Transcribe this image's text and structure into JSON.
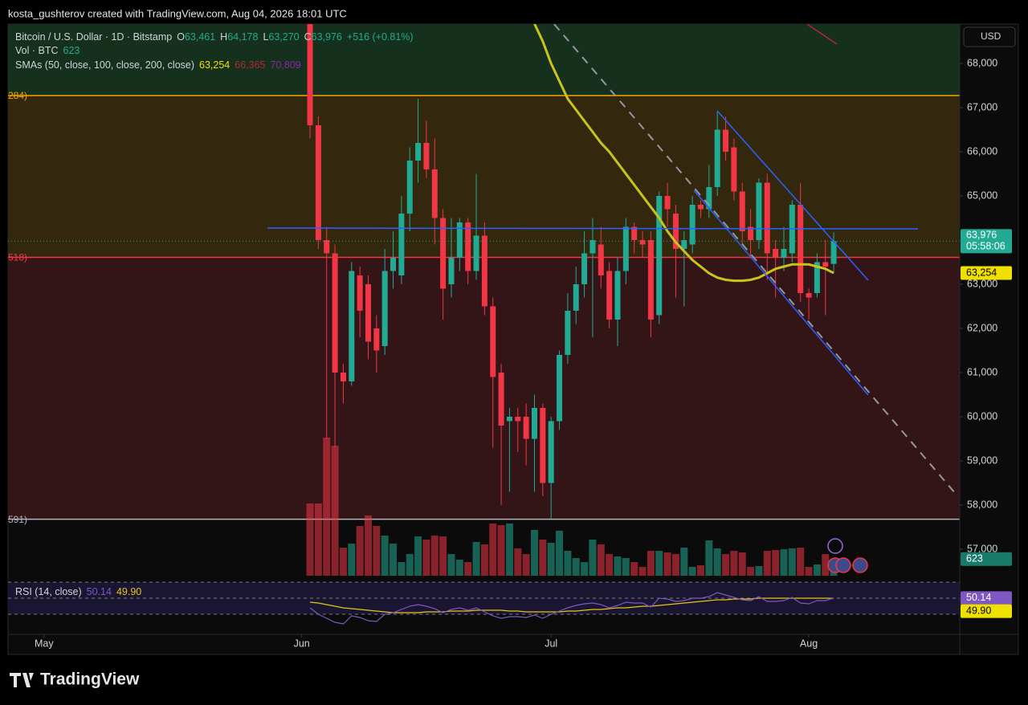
{
  "header": "kosta_gushterov created with TradingView.com, Aug 04, 2026 18:01 UTC",
  "footer": "TradingView",
  "ui": {
    "currency": "USD",
    "symbol": "Bitcoin / U.S. Dollar · 1D · Bitstamp",
    "o_label": "O",
    "open": "63,461",
    "h_label": "H",
    "high": "64,178",
    "l_label": "L",
    "low": "63,270",
    "c_label": "C",
    "close": "63,976",
    "change": "+516 (+0.81%)",
    "volume_label": "Vol · BTC",
    "volume_value": "623",
    "sma_label": "SMAs (50, close, 100, close, 200, close)",
    "sma50_value": "63,254",
    "sma100_value": "66,365",
    "sma200_value": "70,809",
    "rsi_label": "RSI (14, close)",
    "rsi_value": "50.14",
    "rsi_ma_value": "49.90",
    "price_tag": "63,976",
    "countdown": "05:58:06",
    "sma_tag": "63,254",
    "volume_tag": "623",
    "rsi_tag": "50.14",
    "rsi_ma_tag": "49.90"
  },
  "chart_data": {
    "type": "candlestick",
    "title": "Bitcoin / U.S. Dollar · 1D · Bitstamp",
    "categories": [
      null,
      null,
      null,
      null,
      null,
      null,
      null,
      null,
      null,
      null,
      null,
      null,
      null,
      null,
      null,
      null,
      null,
      null,
      null,
      null,
      null,
      null,
      null,
      null,
      null,
      null,
      null,
      null,
      null,
      null,
      null,
      null,
      null,
      null,
      null,
      null,
      null,
      null,
      null,
      null,
      null,
      null,
      null,
      null,
      null,
      null,
      null,
      null,
      null,
      null,
      null,
      null,
      null,
      null,
      null,
      null,
      null,
      null,
      null,
      null,
      null,
      null,
      null,
      null
    ],
    "xlim": [
      -36.33,
      78.16
    ],
    "xticks": [
      {
        "value": -32,
        "label": "May"
      },
      {
        "value": -1,
        "label": "Jun"
      },
      {
        "value": 29,
        "label": "Jul"
      },
      {
        "value": 60,
        "label": "Aug"
      }
    ],
    "ylim": [
      56400,
      68891
    ],
    "yticks": [
      {
        "value": 57000,
        "label": "57,000"
      },
      {
        "value": 58000,
        "label": "58,000"
      },
      {
        "value": 59000,
        "label": "59,000"
      },
      {
        "value": 60000,
        "label": "60,000"
      },
      {
        "value": 61000,
        "label": "61,000"
      },
      {
        "value": 62000,
        "label": "62,000"
      },
      {
        "value": 63000,
        "label": "63,000"
      },
      {
        "value": 64000,
        "label": "64,000"
      },
      {
        "value": 65000,
        "label": "65,000"
      },
      {
        "value": 66000,
        "label": "66,000"
      },
      {
        "value": 67000,
        "label": "67,000"
      },
      {
        "value": 68000,
        "label": "68,000"
      }
    ],
    "up_color": "#22ab94",
    "down_color": "#f23645",
    "open": [
      69000,
      66600,
      64000,
      63700,
      61000,
      60800,
      63200,
      63000,
      62000,
      61600,
      63300,
      63200,
      64600,
      65800,
      66200,
      65600,
      64500,
      63000,
      63600,
      64400,
      63300,
      64100,
      62500,
      61000,
      59900,
      60000,
      60000,
      59500,
      60200,
      58500,
      59900,
      61400,
      62400,
      63000,
      63700,
      63900,
      63300,
      62200,
      63300,
      64300,
      64000,
      64000,
      62300,
      65000,
      64600,
      63800,
      63900,
      64800,
      64700,
      65200,
      66500,
      66100,
      65100,
      64300,
      64000,
      65300,
      63800,
      63600,
      63700,
      64800,
      62800,
      62800,
      63500,
      63461
    ],
    "high": [
      69600,
      66800,
      64300,
      63900,
      61200,
      63500,
      63400,
      63200,
      62300,
      63800,
      64200,
      65000,
      66100,
      67200,
      66700,
      66300,
      64700,
      64500,
      64500,
      64500,
      65500,
      64400,
      62700,
      61200,
      60200,
      60200,
      60300,
      60500,
      60300,
      60000,
      61500,
      62800,
      63400,
      64200,
      64500,
      64300,
      63500,
      63600,
      64500,
      64400,
      64200,
      64200,
      65100,
      65300,
      64800,
      64200,
      65000,
      64900,
      65700,
      66900,
      66800,
      66300,
      65300,
      64700,
      65400,
      65500,
      64000,
      64300,
      64900,
      65300,
      62900,
      63700,
      64000,
      64178
    ],
    "low": [
      66300,
      63800,
      59500,
      59300,
      60300,
      60700,
      61800,
      61300,
      61000,
      61400,
      62900,
      63000,
      64200,
      65300,
      65400,
      63900,
      62200,
      62700,
      63300,
      63000,
      63100,
      62300,
      59300,
      58000,
      58300,
      59200,
      58900,
      58300,
      58200,
      57700,
      59700,
      61200,
      62100,
      62700,
      61800,
      62900,
      62000,
      61600,
      63000,
      63700,
      63600,
      61800,
      62100,
      64300,
      62700,
      62500,
      63700,
      64500,
      64500,
      65000,
      65800,
      64900,
      63900,
      63600,
      63800,
      63100,
      62700,
      63300,
      63500,
      62600,
      62200,
      62700,
      62300,
      63270
    ],
    "close": [
      66600,
      64000,
      63700,
      61000,
      60800,
      63300,
      62400,
      61700,
      61500,
      63300,
      63600,
      64600,
      65800,
      66200,
      65600,
      64500,
      62900,
      63600,
      64400,
      63300,
      64100,
      62500,
      60900,
      59800,
      60000,
      59900,
      59500,
      60200,
      58500,
      59900,
      61400,
      62400,
      63000,
      63700,
      64000,
      63200,
      62200,
      63300,
      64300,
      64000,
      63900,
      62200,
      65000,
      64700,
      63800,
      64000,
      64800,
      64700,
      65200,
      66500,
      66000,
      65100,
      64200,
      64000,
      65300,
      63700,
      63600,
      63800,
      64800,
      62800,
      62700,
      63500,
      63400,
      63976
    ],
    "series": [
      {
        "name": "SMA 50",
        "color": "#c9c41c",
        "values": [
          null,
          null,
          null,
          null,
          null,
          null,
          null,
          null,
          null,
          null,
          null,
          null,
          null,
          null,
          null,
          null,
          null,
          null,
          null,
          null,
          null,
          null,
          null,
          null,
          null,
          null,
          null,
          68900,
          68500,
          68000,
          67600,
          67200,
          66950,
          66700,
          66450,
          66200,
          66000,
          65750,
          65500,
          65250,
          65000,
          64750,
          64500,
          64200,
          63950,
          63750,
          63550,
          63400,
          63250,
          63150,
          63100,
          63080,
          63080,
          63100,
          63150,
          63250,
          63350,
          63400,
          63450,
          63450,
          63450,
          63400,
          63350,
          63254
        ]
      }
    ],
    "levels": [
      {
        "value": 67273,
        "label": "284)",
        "color": "#f7a600",
        "zone_color": "#15301d"
      },
      {
        "value": 63610,
        "label": "518)",
        "color": "#f23645",
        "zone_color": "#33270e"
      },
      {
        "value": 57680,
        "label": "591)",
        "color": "#b2b5be",
        "zone_color": "#331417"
      }
    ],
    "volume": {
      "name": "Vol · BTC",
      "ylim": [
        0,
        6000
      ],
      "values": [
        2700,
        2700,
        5160,
        4860,
        1050,
        1200,
        1860,
        2250,
        1860,
        1500,
        1200,
        510,
        810,
        1470,
        1350,
        1500,
        1470,
        810,
        600,
        510,
        1260,
        1170,
        1950,
        1890,
        1950,
        1020,
        810,
        1710,
        1350,
        1230,
        1680,
        930,
        660,
        510,
        1350,
        1170,
        810,
        720,
        660,
        510,
        330,
        930,
        930,
        870,
        810,
        1050,
        330,
        390,
        1320,
        1020,
        810,
        930,
        870,
        330,
        360,
        930,
        960,
        990,
        1020,
        1050,
        330,
        420,
        810,
        623
      ]
    },
    "rsi": {
      "name": "RSI (14, close)",
      "color": "#7e57c2",
      "ma_color": "#e6c619",
      "ylim": [
        5,
        75
      ],
      "levels": [
        70,
        50,
        30
      ],
      "values": [
        38,
        30,
        25,
        20,
        18,
        28,
        26,
        22,
        21,
        30,
        32,
        36,
        40,
        42,
        40,
        37,
        32,
        36,
        38,
        35,
        38,
        33,
        28,
        25,
        27,
        27,
        26,
        29,
        25,
        30,
        34,
        38,
        41,
        43,
        44,
        42,
        38,
        41,
        45,
        44,
        44,
        39,
        50,
        49,
        46,
        47,
        50,
        50,
        52,
        57,
        54,
        51,
        48,
        47,
        52,
        46,
        46,
        47,
        51,
        44,
        43,
        47,
        47,
        50.14
      ],
      "ma": [
        45,
        44,
        42,
        40,
        38,
        37,
        36,
        35,
        34,
        33,
        32,
        32,
        32,
        32,
        33,
        33,
        33,
        34,
        34,
        34,
        35,
        35,
        35,
        35,
        34,
        34,
        33,
        33,
        33,
        33,
        33,
        34,
        34,
        35,
        36,
        36,
        37,
        38,
        38,
        39,
        40,
        40,
        41,
        42,
        43,
        44,
        45,
        46,
        47,
        48,
        48,
        49,
        49,
        49,
        50,
        50,
        50,
        50,
        50,
        50,
        50,
        50,
        50,
        49.9
      ]
    }
  }
}
